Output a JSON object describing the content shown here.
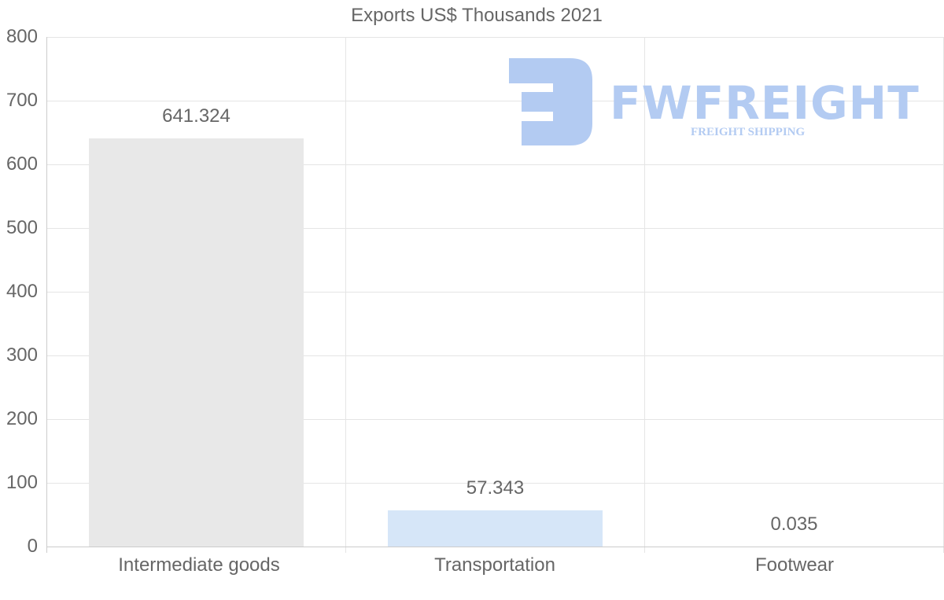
{
  "chart_data": {
    "type": "bar",
    "title": "Exports US$ Thousands 2021",
    "categories": [
      "Intermediate goods",
      "Transportation",
      "Footwear"
    ],
    "values": [
      641.324,
      57.343,
      0.035
    ],
    "value_labels": [
      "641.324",
      "57.343",
      "0.035"
    ],
    "bar_colors": [
      "#e8e8e8",
      "#d6e6f8",
      "#e8e8e8"
    ],
    "xlabel": "",
    "ylabel": "",
    "ylim": [
      0,
      800
    ],
    "yticks": [
      "800",
      "700",
      "600",
      "500",
      "400",
      "300",
      "200",
      "100",
      "0"
    ],
    "grid": true,
    "legend": "none"
  },
  "watermark": {
    "brand": "FWFREIGHT",
    "tagline": "FREIGHT SHIPPING",
    "color": "#b3cbf2"
  }
}
